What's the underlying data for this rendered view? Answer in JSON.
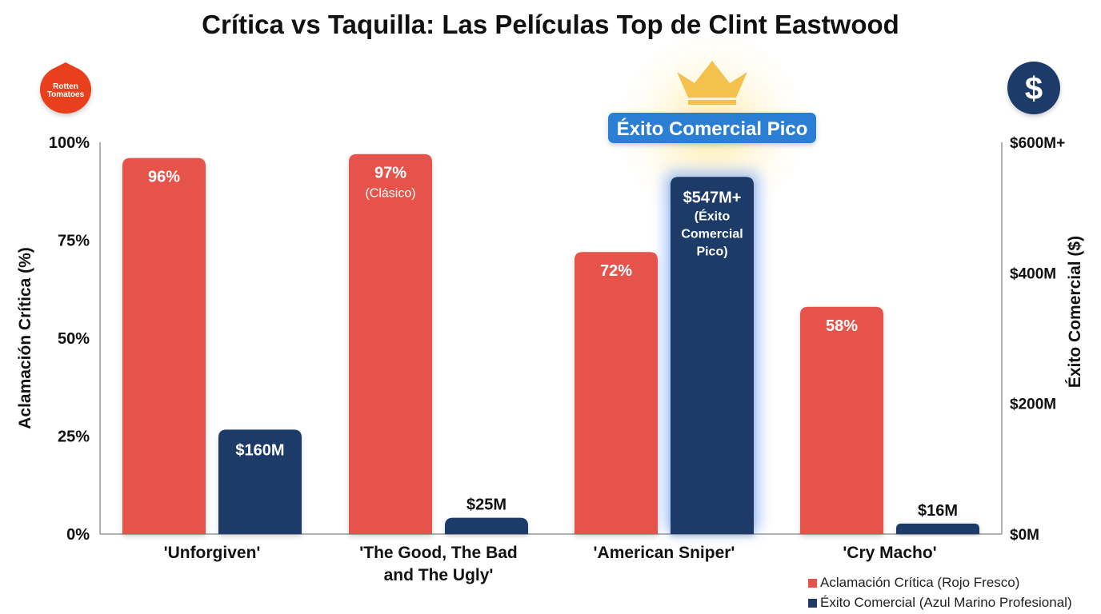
{
  "colors": {
    "critical": "#E5534B",
    "commercial": "#1F3A68",
    "highlight_badge": "#2A7FD4",
    "crown": "#F2C14E"
  },
  "icons": {
    "left": "rotten-tomatoes-logo",
    "right": "dollar-icon",
    "highlight": "crown-icon"
  },
  "logo_text": [
    "Rotten",
    "Tomatoes"
  ],
  "highlight_badge": "Éxito Comercial Pico",
  "legend": [
    {
      "label": "Aclamación Crítica (Rojo Fresco)"
    },
    {
      "label": "Éxito Comercial (Azul Marino Profesional)"
    }
  ],
  "chart_data": {
    "type": "bar",
    "title": "Crítica vs Taquilla: Las Películas Top de Clint Eastwood",
    "categories": [
      [
        "'Unforgiven'"
      ],
      [
        "'The Good, The Bad",
        "and The Ugly'"
      ],
      [
        "'American Sniper'"
      ],
      [
        "'Cry Macho'"
      ]
    ],
    "ylabel_left": "Aclamación Crítica (%)",
    "ylabel_right": "Éxito Comercial ($)",
    "ylim_left": [
      0,
      100
    ],
    "ylim_right": [
      0,
      600
    ],
    "yticks_left": [
      "0%",
      "25%",
      "50%",
      "75%",
      "100%"
    ],
    "yticks_right": [
      "$0M",
      "$200M",
      "$400M",
      "$600M+"
    ],
    "grid": false,
    "legend_position": "bottom-right",
    "series": [
      {
        "name": "Aclamación Crítica (Rojo Fresco)",
        "axis": "left",
        "values": [
          96,
          97,
          72,
          58
        ],
        "labels": [
          [
            "96%"
          ],
          [
            "97%",
            "(Clásico)"
          ],
          [
            "72%"
          ],
          [
            "58%"
          ]
        ]
      },
      {
        "name": "Éxito Comercial (Azul Marino Profesional)",
        "axis": "right",
        "values": [
          160,
          25,
          547,
          16
        ],
        "labels": [
          [
            "$160M"
          ],
          [
            "$25M"
          ],
          [
            "$547M+",
            "(Éxito",
            "Comercial",
            "Pico)"
          ],
          [
            "$16M"
          ]
        ]
      }
    ]
  }
}
